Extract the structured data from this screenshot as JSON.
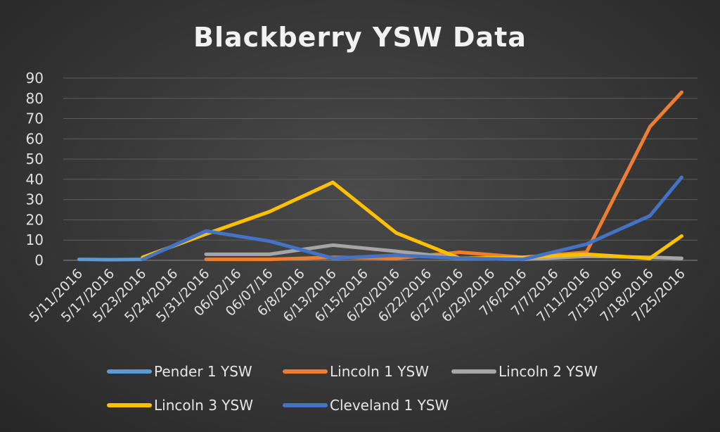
{
  "chart_data": {
    "type": "line",
    "title": "Blackberry YSW Data",
    "xlabel": "",
    "ylabel": "",
    "ylim": [
      0,
      90
    ],
    "yticks": [
      0,
      10,
      20,
      30,
      40,
      50,
      60,
      70,
      80,
      90
    ],
    "grid": true,
    "legend_position": "bottom",
    "categories": [
      "5/11/2016",
      "5/17/2016",
      "5/23/2016",
      "5/24/2016",
      "5/31/2016",
      "06/02/16",
      "06/07/16",
      "6/8/2016",
      "6/13/2016",
      "6/15/2016",
      "6/20/2016",
      "6/22/2016",
      "6/27/2016",
      "6/29/2016",
      "7/6/2016",
      "7/7/2016",
      "7/11/2016",
      "7/13/2016",
      "7/18/2016",
      "7/25/2016"
    ],
    "series": [
      {
        "name": "Pender 1 YSW",
        "color": "#5b9bd5",
        "values": [
          0.5,
          0.3,
          0.5,
          null,
          null,
          null,
          null,
          null,
          null,
          null,
          null,
          null,
          null,
          null,
          null,
          null,
          null,
          null,
          null,
          null
        ]
      },
      {
        "name": "Lincoln 1 YSW",
        "color": "#ed7d31",
        "values": [
          null,
          null,
          null,
          null,
          0.5,
          null,
          0.5,
          null,
          1.5,
          null,
          1,
          null,
          4,
          null,
          1.5,
          null,
          4,
          null,
          66,
          83
        ]
      },
      {
        "name": "Lincoln 2 YSW",
        "color": "#a5a5a5",
        "values": [
          null,
          null,
          null,
          null,
          3,
          null,
          3,
          null,
          7.5,
          null,
          4.5,
          null,
          1,
          null,
          0.5,
          null,
          2,
          null,
          1.5,
          1
        ]
      },
      {
        "name": "Lincoln 3 YSW",
        "color": "#ffc000",
        "values": [
          null,
          null,
          1.5,
          null,
          13,
          null,
          24,
          null,
          38.5,
          null,
          13.5,
          null,
          1,
          null,
          1.5,
          null,
          3,
          null,
          1,
          12
        ]
      },
      {
        "name": "Cleveland 1 YSW",
        "color": "#4472c4",
        "values": [
          null,
          null,
          0.5,
          null,
          14.5,
          null,
          9.5,
          null,
          1,
          null,
          2.5,
          null,
          1,
          null,
          0.5,
          null,
          8,
          null,
          22,
          41
        ]
      }
    ]
  }
}
